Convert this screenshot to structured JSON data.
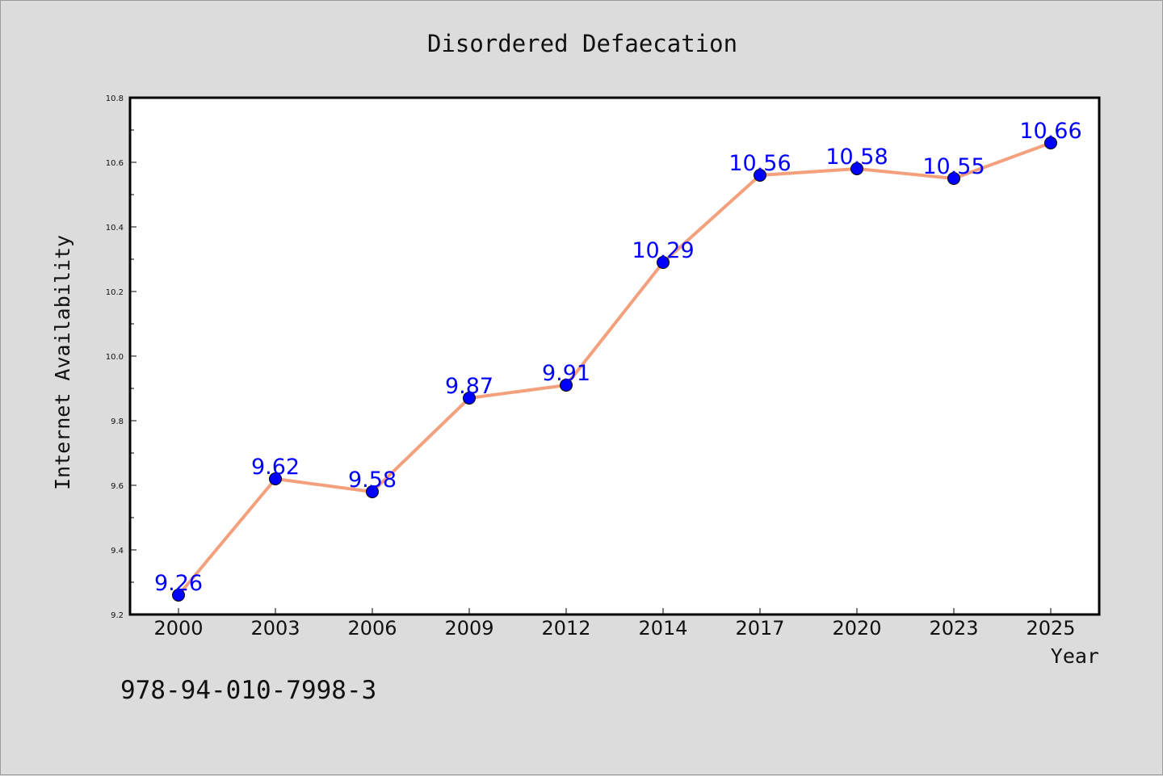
{
  "chart_data": {
    "type": "line",
    "title": "Disordered Defaecation",
    "xlabel": "Year",
    "ylabel": "Internet Availability",
    "categories": [
      "2000",
      "2003",
      "2006",
      "2009",
      "2012",
      "2014",
      "2017",
      "2020",
      "2023",
      "2025"
    ],
    "values": [
      9.26,
      9.62,
      9.58,
      9.87,
      9.91,
      10.29,
      10.56,
      10.58,
      10.55,
      10.66
    ],
    "data_labels": [
      "9.26",
      "9.62",
      "9.58",
      "9.87",
      "9.91",
      "10.29",
      "10.56",
      "10.58",
      "10.55",
      "10.66"
    ],
    "ylim": [
      9.2,
      10.8
    ],
    "yticks": [
      9.2,
      9.4,
      9.6,
      9.8,
      10.0,
      10.2,
      10.4,
      10.6,
      10.8
    ],
    "ytick_labels": [
      "9.2",
      "9.4",
      "9.6",
      "9.8",
      "10.0",
      "10.2",
      "10.4",
      "10.6",
      "10.8"
    ],
    "grid": false,
    "line_color": "#f4a07c",
    "marker_color": "#0000ff",
    "label_color": "#0000ff",
    "background": "#dcdcdc",
    "plot_background": "#ffffff"
  },
  "caption": "978-94-010-7998-3"
}
